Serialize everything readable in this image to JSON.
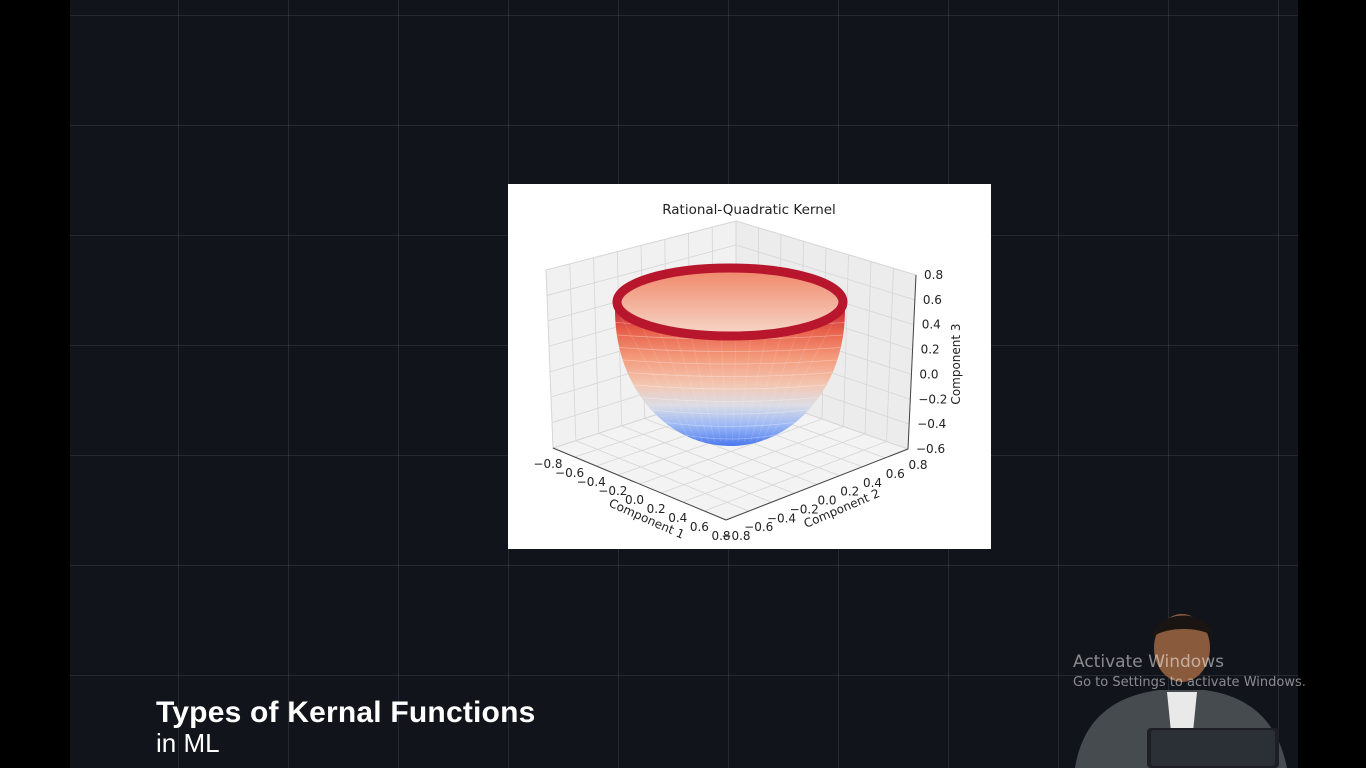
{
  "caption": {
    "title": "Types of Kernal Functions",
    "subtitle": "in ML"
  },
  "watermark": {
    "line1": "Activate Windows",
    "line2": "Go to Settings to activate Windows."
  },
  "chart_data": {
    "type": "surface3d",
    "title": "Rational-Quadratic Kernel",
    "xlabel": "Component 1",
    "ylabel": "Component 2",
    "zlabel": "Component 3",
    "x_ticks": [
      "−0.8",
      "−0.6",
      "−0.4",
      "−0.2",
      "0.0",
      "0.2",
      "0.4",
      "0.6",
      "0.8"
    ],
    "y_ticks": [
      "−0.8",
      "−0.6",
      "−0.4",
      "−0.2",
      "0.0",
      "0.2",
      "0.4",
      "0.6",
      "0.8"
    ],
    "z_ticks": [
      "−0.6",
      "−0.4",
      "−0.2",
      "0.0",
      "0.2",
      "0.4",
      "0.6",
      "0.8"
    ],
    "xlim": [
      -0.8,
      0.8
    ],
    "ylim": [
      -0.8,
      0.8
    ],
    "zlim": [
      -0.6,
      0.8
    ],
    "colormap": "coolwarm",
    "colors": {
      "low": "#3b6ff0",
      "mid": "#dddcdc",
      "high": "#b40426"
    },
    "shape": "hemispherical bowl"
  },
  "colors": {
    "background": "#11141b",
    "grid": "#2a2e36"
  }
}
